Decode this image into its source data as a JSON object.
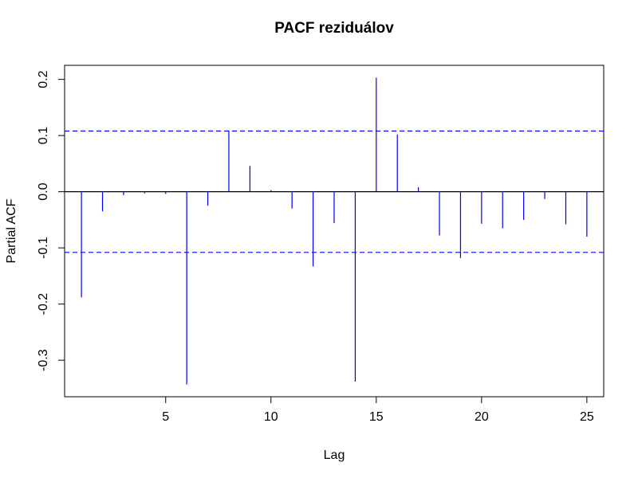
{
  "chart_data": {
    "type": "bar",
    "title": "PACF reziduálov",
    "xlabel": "Lag",
    "ylabel": "Partial ACF",
    "xlim": [
      0.2,
      25.8
    ],
    "ylim": [
      -0.365,
      0.225
    ],
    "x_ticks": [
      5,
      10,
      15,
      20,
      25
    ],
    "y_ticks": [
      -0.3,
      -0.2,
      -0.1,
      0.0,
      0.1,
      0.2
    ],
    "y_tick_labels": [
      "-0.3",
      "-0.2",
      "-0.1",
      "0.0",
      "0.1",
      "0.2"
    ],
    "x": [
      1,
      2,
      3,
      4,
      5,
      6,
      7,
      8,
      9,
      10,
      11,
      12,
      13,
      14,
      15,
      16,
      17,
      18,
      19,
      20,
      21,
      22,
      23,
      24,
      25
    ],
    "values": [
      -0.188,
      -0.035,
      -0.006,
      -0.003,
      -0.004,
      -0.343,
      -0.025,
      0.109,
      0.046,
      0.003,
      -0.03,
      -0.133,
      -0.056,
      -0.338,
      0.203,
      0.102,
      0.008,
      -0.078,
      -0.118,
      -0.057,
      -0.065,
      -0.05,
      -0.013,
      -0.058,
      -0.08
    ],
    "confidence_bound": 0.108,
    "colors": {
      "bars": "#0000ff",
      "confidence_lines": "#0000ff",
      "axes": "#000000"
    },
    "grid": false,
    "legend": "none"
  }
}
